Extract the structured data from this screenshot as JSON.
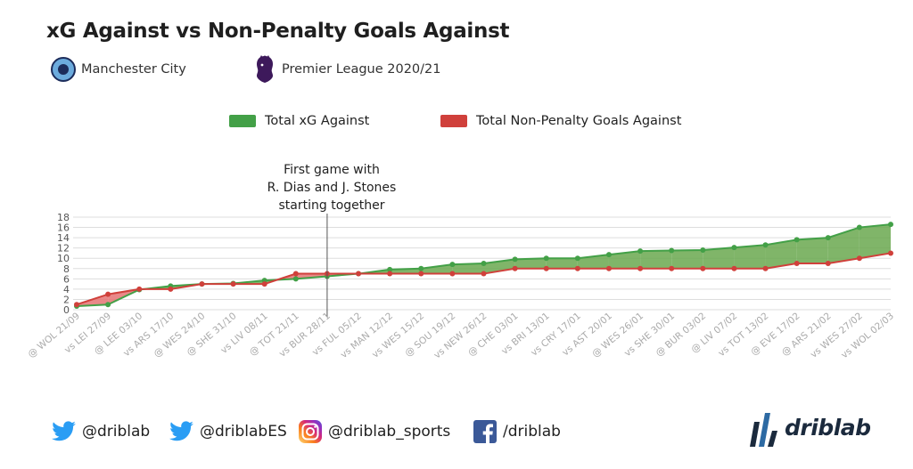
{
  "header": {
    "title": "xG Against vs Non-Penalty Goals Against",
    "team": "Manchester City",
    "competition": "Premier League 2020/21"
  },
  "icons": {
    "team_crest": "manchester-city-crest-icon",
    "league_logo": "premier-league-lion-icon",
    "twitter": "twitter-bird-icon",
    "instagram": "instagram-icon",
    "facebook": "facebook-icon",
    "brand": "driblab-logo-icon"
  },
  "annotation": {
    "lines": [
      "First game with",
      "R. Dias and J. Stones",
      "starting together"
    ],
    "category": "vs BUR 28/11"
  },
  "footer": {
    "handles": [
      "@driblab",
      "@driblabES",
      "@driblab_sports",
      "/driblab"
    ],
    "brand": "driblab"
  },
  "colors": {
    "xg_line": "#43a047",
    "xg_fill": "#6aa84f",
    "goals_line": "#d0403b",
    "goals_fill": "#e57373",
    "grid": "#dddddd",
    "brand_dark": "#1b2a3d",
    "brand_blue": "#2d6aa3",
    "twitter": "#2a9df4",
    "facebook": "#3b5998"
  },
  "chart_data": {
    "type": "area",
    "categories": [
      "@ WOL 21/09",
      "vs LEI 27/09",
      "@ LEE 03/10",
      "vs ARS 17/10",
      "@ WES 24/10",
      "@ SHE 31/10",
      "vs LIV 08/11",
      "@ TOT 21/11",
      "vs BUR 28/11",
      "vs FUL 05/12",
      "vs MAN 12/12",
      "vs WES 15/12",
      "@ SOU 19/12",
      "vs NEW 26/12",
      "@ CHE 03/01",
      "vs BRI 13/01",
      "vs CRY 17/01",
      "vs AST 20/01",
      "@ WES 26/01",
      "vs SHE 30/01",
      "@ BUR 03/02",
      "@ LIV 07/02",
      "vs TOT 13/02",
      "@ EVE 17/02",
      "@ ARS 21/02",
      "vs WES 27/02",
      "vs WOL 02/03"
    ],
    "series": [
      {
        "name": "Total xG Against",
        "values": [
          0.7,
          1.0,
          3.9,
          4.6,
          5.0,
          5.1,
          5.7,
          6.0,
          6.5,
          7.0,
          7.8,
          8.0,
          8.8,
          9.0,
          9.8,
          10.0,
          10.0,
          10.7,
          11.4,
          11.5,
          11.6,
          12.1,
          12.6,
          13.6,
          14.0,
          16.0,
          16.6
        ]
      },
      {
        "name": "Total Non-Penalty Goals Against",
        "values": [
          1,
          3,
          4,
          4,
          5,
          5,
          5,
          7,
          7,
          7,
          7,
          7,
          7,
          7,
          8,
          8,
          8,
          8,
          8,
          8,
          8,
          8,
          8,
          9,
          9,
          10,
          11
        ]
      }
    ],
    "title": "xG Against vs Non-Penalty Goals Against",
    "ylim": [
      0,
      18
    ],
    "yticks": [
      0,
      2,
      4,
      6,
      8,
      10,
      12,
      14,
      16,
      18
    ],
    "grid": true,
    "legend": "top-center"
  }
}
